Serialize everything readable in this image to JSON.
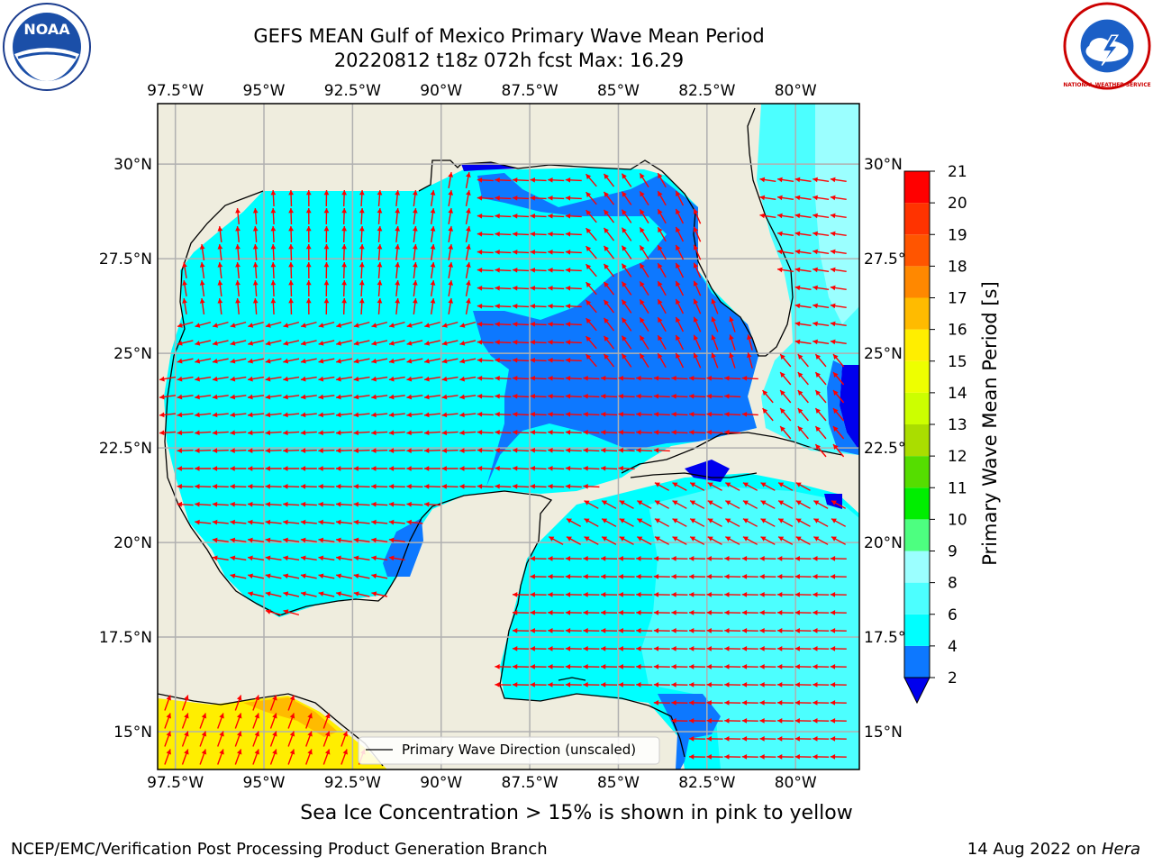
{
  "header": {
    "title_line1": "GEFS MEAN Gulf of Mexico Primary Wave Mean Period",
    "title_line2": "20220812 t18z 072h fcst   Max: 16.29"
  },
  "logos": {
    "left": "noaa-logo",
    "left_text": "NOAA",
    "right": "nws-logo",
    "right_text": "NATIONAL WEATHER SERVICE"
  },
  "map": {
    "lon_labels": [
      "97.5°W",
      "95°W",
      "92.5°W",
      "90°W",
      "87.5°W",
      "85°W",
      "82.5°W",
      "80°W"
    ],
    "lat_labels": [
      "30°N",
      "27.5°N",
      "25°N",
      "22.5°N",
      "20°N",
      "17.5°N",
      "15°N"
    ],
    "lon_extent": [
      -98,
      -78.2
    ],
    "lat_extent": [
      14,
      31.6
    ],
    "legend_label": "Primary Wave Direction (unscaled)",
    "colors": {
      "land": "#efedde",
      "grid": "#b0b0b0",
      "arrow": "#ff0000"
    }
  },
  "colorbar": {
    "title": "Primary Wave Mean Period [s]",
    "ticks": [
      "2",
      "4",
      "6",
      "8",
      "9",
      "10",
      "11",
      "12",
      "13",
      "14",
      "15",
      "16",
      "17",
      "18",
      "19",
      "20",
      "21"
    ],
    "bins": [
      {
        "from": 2,
        "to": 4,
        "color": "#0d78ff"
      },
      {
        "from": 4,
        "to": 6,
        "color": "#00ffff"
      },
      {
        "from": 6,
        "to": 8,
        "color": "#4cffff"
      },
      {
        "from": 8,
        "to": 9,
        "color": "#9bffff"
      },
      {
        "from": 9,
        "to": 10,
        "color": "#4dff80"
      },
      {
        "from": 10,
        "to": 11,
        "color": "#00ee00"
      },
      {
        "from": 11,
        "to": 12,
        "color": "#55dd00"
      },
      {
        "from": 12,
        "to": 13,
        "color": "#aadd00"
      },
      {
        "from": 13,
        "to": 14,
        "color": "#ccff00"
      },
      {
        "from": 14,
        "to": 15,
        "color": "#eeff00"
      },
      {
        "from": 15,
        "to": 16,
        "color": "#ffee00"
      },
      {
        "from": 16,
        "to": 17,
        "color": "#ffbb00"
      },
      {
        "from": 17,
        "to": 18,
        "color": "#ff8800"
      },
      {
        "from": 18,
        "to": 19,
        "color": "#ff5500"
      },
      {
        "from": 19,
        "to": 20,
        "color": "#ff3300"
      },
      {
        "from": 20,
        "to": 21,
        "color": "#ff0000"
      }
    ],
    "under_color": "#0000ee"
  },
  "notes": {
    "sea_ice": "Sea Ice Concentration > 15% is shown in pink to yellow",
    "footer_left": "NCEP/EMC/Verification Post Processing Product Generation Branch",
    "footer_date": "14 Aug 2022 on ",
    "footer_host": "Hera"
  }
}
